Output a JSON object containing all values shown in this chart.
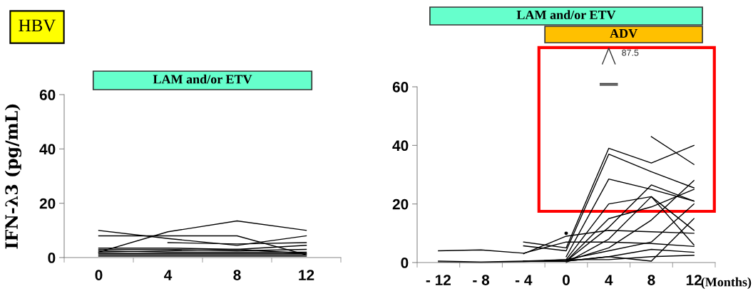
{
  "chart_data": [
    {
      "type": "line",
      "title": "HBV",
      "ylabel": "IFN-λ3 (pg/mL)",
      "categories": [
        "0",
        "4",
        "8",
        "12"
      ],
      "ylim": [
        0,
        60
      ],
      "yticks": [
        0,
        20,
        40,
        60
      ],
      "color": "#000000",
      "grid": false,
      "legend": false,
      "annotations": [
        "LAM and/or ETV"
      ],
      "series": [
        {
          "values": [
            2,
            9.5,
            13.5,
            10
          ]
        },
        {
          "values": [
            10,
            7,
            4.5,
            8
          ]
        },
        {
          "values": [
            8,
            8,
            8,
            1
          ]
        },
        {
          "values": [
            null,
            5.5,
            5,
            5.5
          ]
        },
        {
          "values": [
            3.5,
            3.5,
            3,
            4.5
          ]
        },
        {
          "values": [
            3,
            3,
            2.5,
            3
          ]
        },
        {
          "values": [
            2.5,
            2,
            2,
            2
          ]
        },
        {
          "values": [
            2,
            2.5,
            3,
            1.5
          ]
        },
        {
          "values": [
            1.5,
            1.5,
            1.5,
            1.5
          ]
        },
        {
          "values": [
            1,
            1,
            1,
            1
          ]
        },
        {
          "values": [
            0.5,
            0.5,
            0.5,
            0.5
          ]
        }
      ]
    },
    {
      "type": "line",
      "xlabel": "(Months)",
      "categories": [
        "- 12",
        "- 8",
        "- 4",
        "0",
        "4",
        "8",
        "12"
      ],
      "ylim": [
        0,
        60
      ],
      "yticks": [
        0,
        20,
        40,
        60
      ],
      "color": "#000000",
      "grid": false,
      "legend": false,
      "annotations": [
        "LAM and/or ETV",
        "ADV",
        "87.5"
      ],
      "series": [
        {
          "values": [
            null,
            null,
            null,
            10,
            null,
            43,
            33.5
          ]
        },
        {
          "values": [
            null,
            null,
            7,
            5,
            39,
            34,
            40
          ]
        },
        {
          "values": [
            null,
            null,
            5.7,
            4,
            37,
            31,
            25.5
          ]
        },
        {
          "values": [
            null,
            null,
            null,
            2,
            28.5,
            25,
            21
          ]
        },
        {
          "values": [
            null,
            null,
            0.5,
            1,
            20,
            22.5,
            6
          ]
        },
        {
          "values": [
            null,
            null,
            0.5,
            0.5,
            12,
            26.5,
            21
          ]
        },
        {
          "values": [
            null,
            null,
            0.5,
            0.5,
            15,
            19,
            25
          ]
        },
        {
          "values": [
            null,
            null,
            null,
            0,
            8,
            22.5,
            11
          ]
        },
        {
          "values": [
            null,
            null,
            null,
            0.5,
            5,
            14.5,
            28
          ]
        },
        {
          "values": [
            null,
            null,
            3,
            9,
            11,
            10.5,
            10
          ]
        },
        {
          "values": [
            4,
            4.3,
            3.2,
            7,
            7,
            6.5,
            5.5
          ]
        },
        {
          "values": [
            null,
            null,
            null,
            1,
            4,
            7,
            20
          ]
        },
        {
          "values": [
            0.5,
            0.2,
            0.5,
            0.5,
            2,
            4.5,
            3.5
          ]
        },
        {
          "values": [
            null,
            null,
            0.5,
            0.5,
            2,
            0.5,
            15
          ]
        },
        {
          "values": [
            0.2,
            0,
            0.3,
            1,
            1,
            2,
            2.5
          ]
        }
      ]
    }
  ]
}
